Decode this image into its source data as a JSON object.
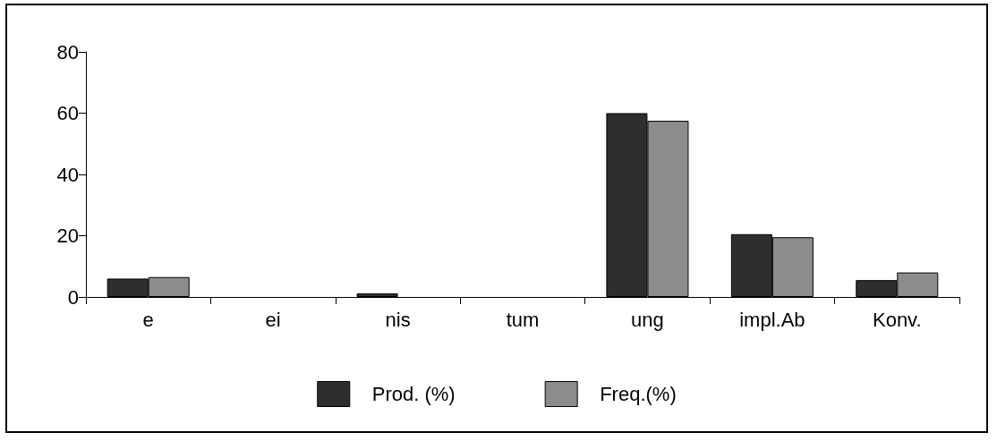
{
  "chart_data": {
    "type": "bar",
    "categories": [
      "e",
      "ei",
      "nis",
      "tum",
      "ung",
      "impl.Ab",
      "Konv."
    ],
    "series": [
      {
        "name": "Prod. (%)",
        "color": "#2e2e2e",
        "values": [
          6,
          0,
          1.2,
          0,
          60,
          20.5,
          5.5
        ]
      },
      {
        "name": "Freq.(%)",
        "color": "#8c8c8c",
        "values": [
          6.5,
          0,
          0,
          0,
          57.5,
          19.5,
          8
        ]
      }
    ],
    "ylim": [
      0,
      80
    ],
    "yticks": [
      0,
      20,
      40,
      60,
      80
    ],
    "grid": false,
    "legend": "bottom"
  }
}
